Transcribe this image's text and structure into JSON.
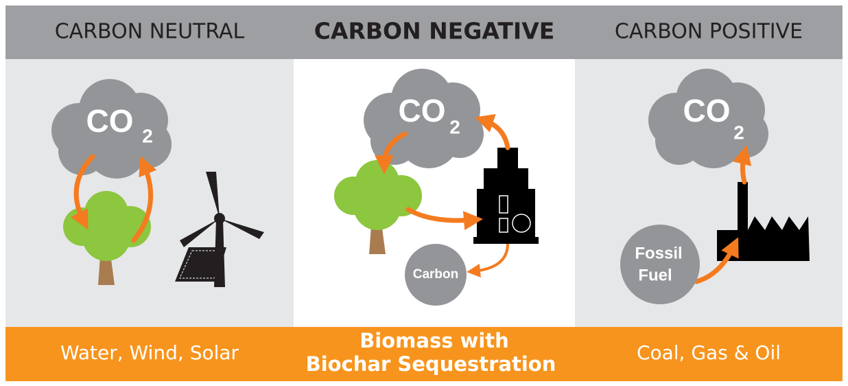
{
  "panels": [
    {
      "title": "CARBON NEUTRAL",
      "cloud": {
        "text": "CO",
        "subscript": "2"
      },
      "footer": [
        "Water, Wind, Solar"
      ]
    },
    {
      "title": "CARBON NEGATIVE",
      "cloud": {
        "text": "CO",
        "subscript": "2"
      },
      "store": "Carbon",
      "footer": [
        "Biomass with",
        "Biochar Sequestration"
      ]
    },
    {
      "title": "CARBON POSITIVE",
      "cloud": {
        "text": "CO",
        "subscript": "2"
      },
      "source": [
        "Fossil",
        "Fuel"
      ],
      "footer": [
        "Coal, Gas & Oil"
      ]
    }
  ]
}
